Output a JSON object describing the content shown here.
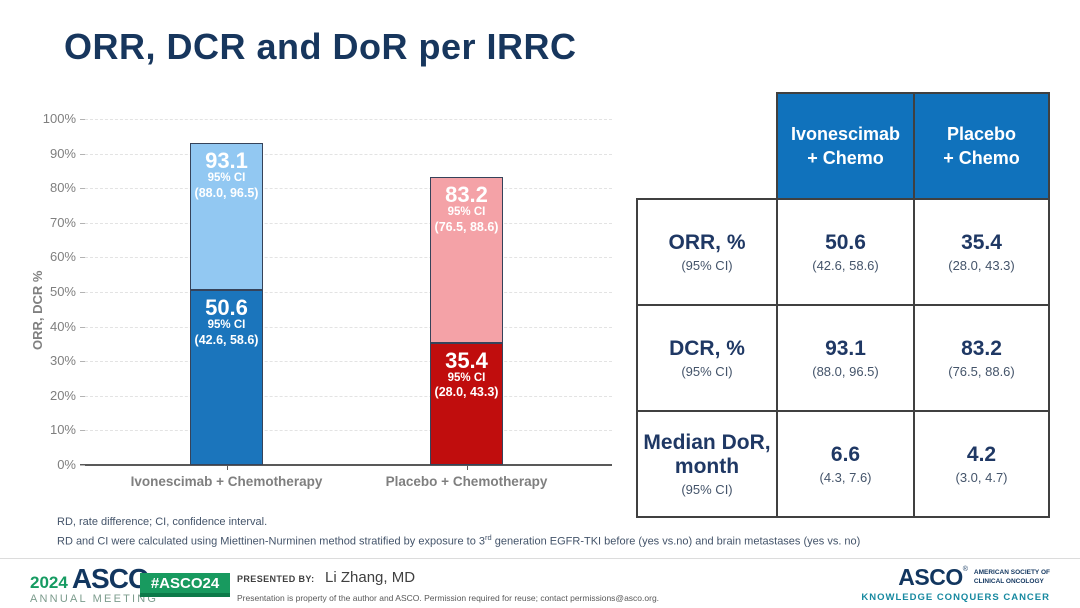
{
  "slide": {
    "title": "ORR, DCR and DoR per IRRC"
  },
  "chart_data": {
    "type": "bar",
    "stacked": true,
    "title": "",
    "xlabel": "",
    "ylabel": "ORR, DCR %",
    "ylim": [
      0,
      100
    ],
    "ytick_step": 10,
    "yticks": [
      "0%",
      "10%",
      "20%",
      "30%",
      "40%",
      "50%",
      "60%",
      "70%",
      "80%",
      "90%",
      "100%"
    ],
    "grid": "horizontal-dashed",
    "legend": "none",
    "categories": [
      "Ivonescimab +  Chemotherapy",
      "Placebo +  Chemotherapy"
    ],
    "series": [
      {
        "name": "ORR %",
        "values": [
          50.6,
          35.4
        ]
      },
      {
        "name": "DCR %",
        "values": [
          93.1,
          83.2
        ]
      }
    ],
    "bars": [
      {
        "category": "Ivonescimab +  Chemotherapy",
        "segments": [
          {
            "metric": "ORR",
            "value_label": "50.6",
            "ci_heading": "95% CI",
            "ci": "(42.6, 58.6)",
            "from": 0,
            "to": 50.6,
            "color": "#1b75bc"
          },
          {
            "metric": "DCR",
            "value_label": "93.1",
            "ci_heading": "95% CI",
            "ci": "(88.0, 96.5)",
            "from": 50.6,
            "to": 93.1,
            "color": "#92c8f2"
          }
        ]
      },
      {
        "category": "Placebo +  Chemotherapy",
        "segments": [
          {
            "metric": "ORR",
            "value_label": "35.4",
            "ci_heading": "95% CI",
            "ci": "(28.0, 43.3)",
            "from": 0,
            "to": 35.4,
            "color": "#c00d0d"
          },
          {
            "metric": "DCR",
            "value_label": "83.2",
            "ci_heading": "95% CI",
            "ci": "(76.5, 88.6)",
            "from": 35.4,
            "to": 83.2,
            "color": "#f4a2a7"
          }
        ]
      }
    ]
  },
  "table": {
    "header_bg": "#1072bc",
    "col_headers": [
      "Ivonescimab\n+ Chemo",
      "Placebo\n+ Chemo"
    ],
    "rows": [
      {
        "label": "ORR, %",
        "sub": "(95% CI)",
        "cells": [
          {
            "value": "50.6",
            "ci": "(42.6, 58.6)"
          },
          {
            "value": "35.4",
            "ci": "(28.0, 43.3)"
          }
        ]
      },
      {
        "label": "DCR, %",
        "sub": "(95% CI)",
        "cells": [
          {
            "value": "93.1",
            "ci": "(88.0, 96.5)"
          },
          {
            "value": "83.2",
            "ci": "(76.5, 88.6)"
          }
        ]
      },
      {
        "label": "Median DoR,\nmonth",
        "sub": "(95% CI)",
        "cells": [
          {
            "value": "6.6",
            "ci": "(4.3, 7.6)"
          },
          {
            "value": "4.2",
            "ci": "(3.0, 4.7)"
          }
        ]
      }
    ]
  },
  "footnotes": {
    "line1": "RD, rate difference; CI, confidence interval.",
    "line2_before": "RD and CI were calculated using Miettinen-Nurminen method stratified by exposure to 3",
    "line2_sup": "rd",
    "line2_after": " generation EGFR-TKI before (yes vs.no) and brain metastases (yes vs. no)"
  },
  "footer": {
    "meeting_year": "2024",
    "meeting_org": "ASCO",
    "meeting_mark": "®",
    "meeting_name": "ANNUAL MEETING",
    "hashtag": "#ASCO24",
    "presented_by_label": "PRESENTED BY:",
    "presenter": "Li Zhang, MD",
    "disclaimer": "Presentation is property of the author and ASCO. Permission required for reuse; contact permissions@asco.org.",
    "org_name": "ASCO",
    "org_mark": "®",
    "org_tagline_line1": "AMERICAN SOCIETY OF",
    "org_tagline_line2": "CLINICAL ONCOLOGY",
    "org_motto": "KNOWLEDGE CONQUERS CANCER",
    "colors": {
      "badge_green": "#189a5f",
      "badge_green_dark": "#0c7a49",
      "navy": "#12365f",
      "teal": "#1789a0",
      "sage": "#7c9c8d",
      "header_blue": "#1072bc"
    }
  }
}
